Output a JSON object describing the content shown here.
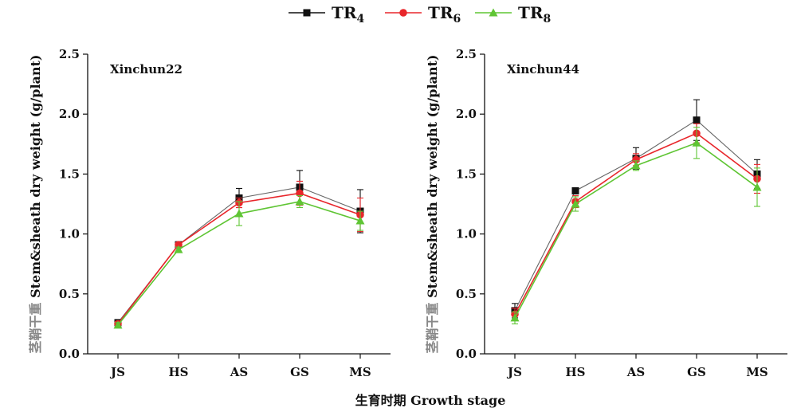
{
  "legend": [
    {
      "base": "TR",
      "sub": "4",
      "color": "#111111",
      "marker": "square"
    },
    {
      "base": "TR",
      "sub": "6",
      "color": "#e8262b",
      "marker": "circle"
    },
    {
      "base": "TR",
      "sub": "8",
      "color": "#5fc534",
      "marker": "triangle"
    }
  ],
  "xlabel": "生育时期  Growth stage",
  "chart_data": [
    {
      "type": "line",
      "title": "Xinchun22",
      "ylabel_cn": "茎鞘干重",
      "ylabel": "Stem&sheath dry weight (g/plant)",
      "categories": [
        "JS",
        "HS",
        "AS",
        "GS",
        "MS"
      ],
      "ylim": [
        0,
        2.5
      ],
      "yticks": [
        "0.0",
        "0.5",
        "1.0",
        "1.5",
        "2.0",
        "2.5"
      ],
      "series": [
        {
          "name": "TR4",
          "values": [
            0.26,
            0.91,
            1.3,
            1.39,
            1.19
          ],
          "errors": [
            0.02,
            0.02,
            0.08,
            0.14,
            0.18
          ]
        },
        {
          "name": "TR6",
          "values": [
            0.25,
            0.91,
            1.26,
            1.34,
            1.16
          ],
          "errors": [
            0.02,
            0.02,
            0.04,
            0.1,
            0.14
          ]
        },
        {
          "name": "TR8",
          "values": [
            0.24,
            0.87,
            1.17,
            1.27,
            1.11
          ],
          "errors": [
            0.02,
            0.02,
            0.1,
            0.05,
            0.08
          ]
        }
      ]
    },
    {
      "type": "line",
      "title": "Xinchun44",
      "ylabel_cn": "茎鞘干重",
      "ylabel": "Stem&sheath dry weight (g/plant)",
      "categories": [
        "JS",
        "HS",
        "AS",
        "GS",
        "MS"
      ],
      "ylim": [
        0,
        2.5
      ],
      "yticks": [
        "0.0",
        "0.5",
        "1.0",
        "1.5",
        "2.0",
        "2.5"
      ],
      "series": [
        {
          "name": "TR4",
          "values": [
            0.36,
            1.36,
            1.63,
            1.95,
            1.5
          ],
          "errors": [
            0.06,
            0.02,
            0.09,
            0.17,
            0.12
          ]
        },
        {
          "name": "TR6",
          "values": [
            0.33,
            1.27,
            1.62,
            1.84,
            1.46
          ],
          "errors": [
            0.05,
            0.05,
            0.05,
            0.08,
            0.12
          ]
        },
        {
          "name": "TR8",
          "values": [
            0.3,
            1.25,
            1.57,
            1.76,
            1.39
          ],
          "errors": [
            0.05,
            0.06,
            0.04,
            0.13,
            0.16
          ]
        }
      ]
    }
  ]
}
